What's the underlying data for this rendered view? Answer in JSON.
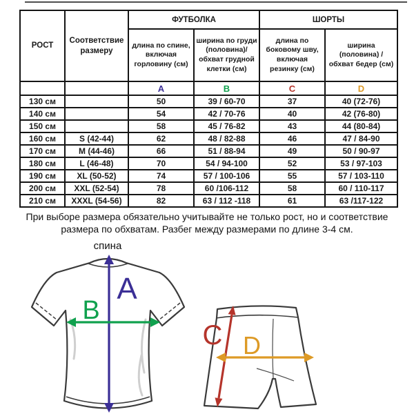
{
  "table": {
    "group_headers": {
      "tshirt": "ФУТБОЛКА",
      "shorts": "ШОРТЫ"
    },
    "col_headers": {
      "height": "РОСТ",
      "size": "Соответствие размеру",
      "tshirt_length": "длина по спине, включая горловину (см)",
      "tshirt_width": "ширина по груди (половина)/обхват грудной клетки (см)",
      "shorts_length": "длина по боковому шву, включая резинку (см)",
      "shorts_width": "ширина (половина) / обхват бедер (см)"
    },
    "letters": [
      "A",
      "B",
      "C",
      "D"
    ],
    "letter_colors": [
      "#3b2f96",
      "#10a14e",
      "#b5342b",
      "#dd9a26"
    ],
    "rows": [
      [
        "130 см",
        "",
        "50",
        "39 / 60-70",
        "37",
        "40 (72-76)"
      ],
      [
        "140 см",
        "",
        "54",
        "42 / 70-76",
        "40",
        "42 (76-80)"
      ],
      [
        "150 см",
        "",
        "58",
        "45 / 76-82",
        "43",
        "44 (80-84)"
      ],
      [
        "160 см",
        "S (42-44)",
        "62",
        "48 / 82-88",
        "46",
        "47 / 84-90"
      ],
      [
        "170 см",
        "M (44-46)",
        "66",
        "51 / 88-94",
        "49",
        "50 / 90-97"
      ],
      [
        "180 см",
        "L (46-48)",
        "70",
        "54 / 94-100",
        "52",
        "53 / 97-103"
      ],
      [
        "190 см",
        "XL (50-52)",
        "74",
        "57 / 100-106",
        "55",
        "57 / 103-110"
      ],
      [
        "200 см",
        "XXL (52-54)",
        "78",
        "60 /106-112",
        "58",
        "60 / 110-117"
      ],
      [
        "210 см",
        "XXXL (54-56)",
        "82",
        "63 / 112 -118",
        "61",
        "63 /117-122"
      ]
    ]
  },
  "note": {
    "text": "При выборе размера обязательно учитывайте не только рост, но и соответствие размера по обхватам. Разбег между размерами по длине 3-4 см."
  },
  "diagram": {
    "tshirt_caption": "спина",
    "labels": {
      "a": "A",
      "b": "B",
      "c": "C",
      "d": "D"
    },
    "colors": {
      "a": "#3b2f96",
      "b": "#10a14e",
      "c": "#b5342b",
      "d": "#dd9a26"
    }
  }
}
